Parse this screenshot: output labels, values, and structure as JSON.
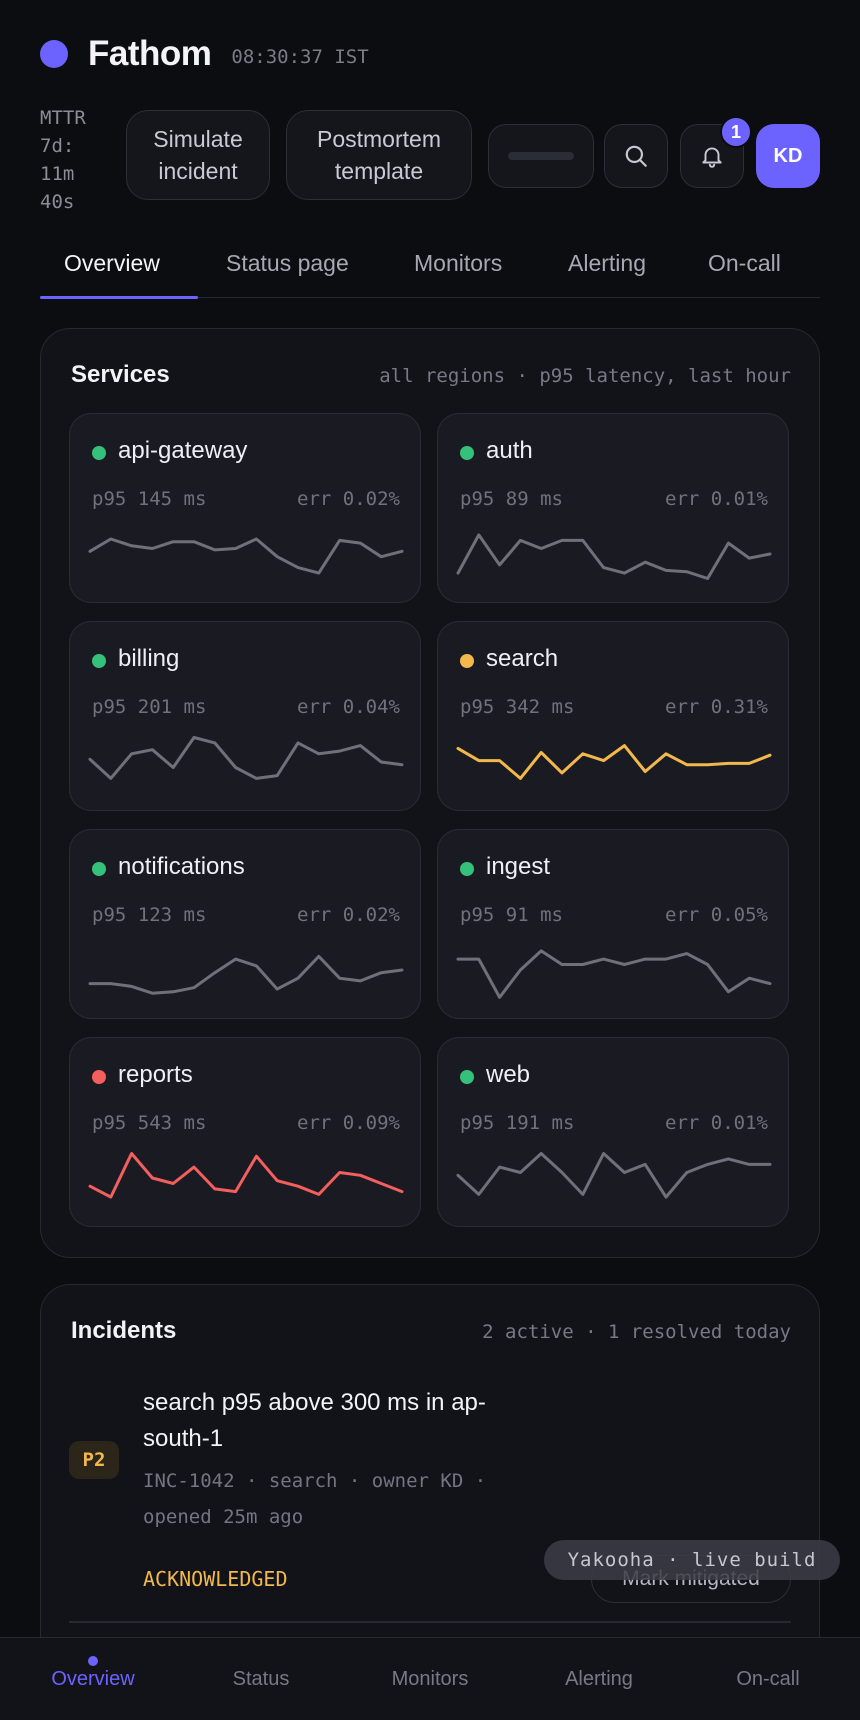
{
  "app": {
    "name": "Fathom",
    "time": "08:30:37 IST",
    "accent": "#6c63ff"
  },
  "header": {
    "mttr": "MTTR 7d: 11m 40s",
    "simulate_label": "Simulate incident",
    "postmortem_label": "Postmortem template",
    "notification_count": "1",
    "avatar_initials": "KD"
  },
  "tabs": [
    "Overview",
    "Status page",
    "Monitors",
    "Alerting",
    "On-call"
  ],
  "services": {
    "title": "Services",
    "subtitle": "all regions · p95 latency, last hour",
    "items": [
      {
        "name": "api-gateway",
        "status": "healthy",
        "p95": "p95 145 ms",
        "err": "err 0.02%",
        "trend": [
          20,
          11,
          16,
          18,
          13,
          13,
          19,
          18,
          11,
          24,
          32,
          36,
          12,
          14,
          24,
          20
        ]
      },
      {
        "name": "auth",
        "status": "healthy",
        "p95": "p95 89 ms",
        "err": "err 0.01%",
        "trend": [
          36,
          8,
          30,
          12,
          18,
          12,
          12,
          32,
          36,
          28,
          34,
          35,
          40,
          14,
          25,
          22
        ]
      },
      {
        "name": "billing",
        "status": "healthy",
        "p95": "p95 201 ms",
        "err": "err 0.04%",
        "trend": [
          20,
          34,
          16,
          13,
          26,
          4,
          8,
          26,
          34,
          32,
          8,
          16,
          14,
          10,
          22,
          24
        ]
      },
      {
        "name": "search",
        "status": "warning",
        "p95": "p95 342 ms",
        "err": "err 0.31%",
        "trend": [
          12,
          21,
          21,
          34,
          15,
          30,
          16,
          21,
          10,
          29,
          16,
          24,
          24,
          23,
          23,
          17
        ]
      },
      {
        "name": "notifications",
        "status": "healthy",
        "p95": "p95 123 ms",
        "err": "err 0.02%",
        "trend": [
          32,
          32,
          34,
          39,
          38,
          35,
          24,
          14,
          19,
          36,
          28,
          12,
          28,
          30,
          24,
          22
        ]
      },
      {
        "name": "ingest",
        "status": "healthy",
        "p95": "p95 91 ms",
        "err": "err 0.05%",
        "trend": [
          14,
          14,
          42,
          22,
          8,
          18,
          18,
          14,
          18,
          14,
          14,
          10,
          18,
          38,
          28,
          32
        ]
      },
      {
        "name": "reports",
        "status": "critical",
        "p95": "p95 543 ms",
        "err": "err 0.09%",
        "trend": [
          28,
          36,
          4,
          22,
          26,
          14,
          30,
          32,
          6,
          24,
          28,
          34,
          18,
          20,
          26,
          32
        ]
      },
      {
        "name": "web",
        "status": "healthy",
        "p95": "p95 191 ms",
        "err": "err 0.01%",
        "trend": [
          20,
          34,
          14,
          18,
          4,
          18,
          34,
          4,
          18,
          12,
          36,
          18,
          12,
          8,
          12,
          12
        ]
      }
    ]
  },
  "status_colors": {
    "healthy": "#34c27a",
    "warning": "#f2b84b",
    "critical": "#f25f5c",
    "neutral_line": "#6e707c"
  },
  "incidents": {
    "title": "Incidents",
    "subtitle": "2 active · 1 resolved today",
    "items": [
      {
        "severity": "P2",
        "title": "search p95 above 300 ms in ap-south-1",
        "meta": "INC-1042 · search · owner KD · opened 25m ago",
        "status": "ACKNOWLEDGED",
        "action_label": "Mark mitigated"
      }
    ]
  },
  "overlay": {
    "live_build": "Yakooha · live build"
  },
  "bottom_nav": [
    "Overview",
    "Status",
    "Monitors",
    "Alerting",
    "On-call"
  ]
}
